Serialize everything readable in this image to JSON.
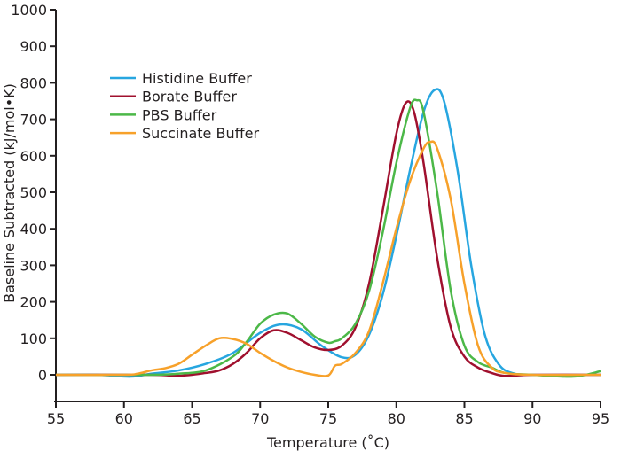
{
  "chart_data": {
    "type": "line",
    "title": "",
    "xlabel": "Temperature (˚C)",
    "ylabel": "Baseline Subtracted (kJ/mol•K)",
    "xlim": [
      55,
      95
    ],
    "ylim": [
      0,
      1000
    ],
    "xticks": [
      55,
      60,
      65,
      70,
      75,
      80,
      85,
      90,
      95
    ],
    "yticks": [
      0,
      100,
      200,
      300,
      400,
      500,
      600,
      700,
      800,
      900,
      1000
    ],
    "grid": false,
    "legend_position": "top-left",
    "series": [
      {
        "name": "Histidine Buffer",
        "color": "#27a6e0",
        "x": [
          55,
          58,
          60.5,
          62,
          64,
          66,
          68,
          70,
          71.5,
          73,
          74.5,
          76,
          77,
          78,
          79,
          80,
          81,
          82,
          82.8,
          83.5,
          84.5,
          85.5,
          86.5,
          87.5,
          88.5,
          90,
          95
        ],
        "y": [
          0,
          0,
          -5,
          3,
          12,
          30,
          60,
          115,
          138,
          125,
          80,
          48,
          55,
          110,
          220,
          380,
          560,
          720,
          780,
          750,
          560,
          300,
          110,
          30,
          5,
          0,
          0
        ]
      },
      {
        "name": "Borate Buffer",
        "color": "#a0102e",
        "x": [
          55,
          62,
          64,
          66,
          67,
          68,
          69,
          70,
          71,
          72,
          73,
          74,
          75,
          76,
          77,
          78,
          79,
          80,
          80.7,
          81.3,
          82,
          83,
          84,
          85,
          86,
          87,
          88,
          90,
          95
        ],
        "y": [
          0,
          0,
          -3,
          5,
          12,
          30,
          60,
          100,
          122,
          115,
          95,
          75,
          68,
          80,
          130,
          250,
          450,
          660,
          745,
          720,
          580,
          320,
          130,
          50,
          20,
          5,
          -3,
          0,
          0
        ]
      },
      {
        "name": "PBS Buffer",
        "color": "#4cb848",
        "x": [
          55,
          62,
          64,
          66,
          68,
          69,
          70,
          71,
          72,
          73,
          74,
          75,
          75.5,
          76,
          77,
          78,
          79,
          80,
          81,
          81.5,
          82,
          83,
          84,
          85,
          86,
          87,
          88,
          90,
          93,
          95
        ],
        "y": [
          0,
          0,
          3,
          12,
          50,
          90,
          140,
          165,
          168,
          140,
          105,
          88,
          92,
          100,
          140,
          230,
          390,
          580,
          730,
          752,
          720,
          500,
          230,
          80,
          35,
          20,
          5,
          0,
          -5,
          10
        ]
      },
      {
        "name": "Succinate Buffer",
        "color": "#f7a12a",
        "x": [
          55,
          60,
          61,
          62,
          63,
          64,
          65,
          66,
          67,
          68,
          69,
          70,
          71,
          72,
          73,
          74,
          75,
          75.5,
          76,
          77,
          78,
          79,
          80,
          81,
          82,
          82.5,
          83,
          84,
          85,
          86,
          87,
          88,
          90,
          95
        ],
        "y": [
          0,
          0,
          3,
          12,
          18,
          30,
          55,
          80,
          100,
          98,
          85,
          60,
          38,
          20,
          8,
          0,
          -2,
          25,
          30,
          60,
          120,
          250,
          400,
          530,
          620,
          638,
          620,
          480,
          250,
          80,
          20,
          5,
          0,
          0
        ]
      }
    ]
  }
}
